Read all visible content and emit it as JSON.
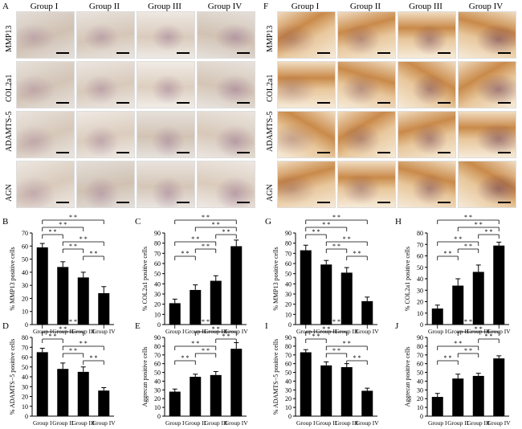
{
  "figure": {
    "left_panel": {
      "letter": "A",
      "columns": [
        "Group I",
        "Group II",
        "Group III",
        "Group IV"
      ],
      "rows": [
        "MMP13",
        "COL2a1",
        "ADAMTS-5",
        "AGN"
      ],
      "theme": "pale"
    },
    "right_panel": {
      "letter": "F",
      "columns": [
        "Group I",
        "Group II",
        "Group III",
        "Group IV"
      ],
      "rows": [
        "MMP13",
        "COL2a1",
        "ADAMTS-5",
        "AGN"
      ],
      "theme": "dark"
    }
  },
  "colors": {
    "bar": "#000000",
    "axis": "#000000"
  },
  "chart_data": [
    {
      "letter": "B",
      "type": "bar",
      "ylabel": "% MMP13 positive cells",
      "categories": [
        "Group I",
        "Group II",
        "Group III",
        "Group IV"
      ],
      "values": [
        59,
        44,
        36,
        24
      ],
      "errors": [
        3,
        4,
        4,
        5
      ],
      "ylim": [
        0,
        70
      ],
      "yticks": [
        0,
        10,
        20,
        30,
        40,
        50,
        60,
        70
      ],
      "significance": [
        [
          "1",
          "2"
        ],
        [
          "1",
          "3"
        ],
        [
          "1",
          "4"
        ],
        [
          "2",
          "3"
        ],
        [
          "2",
          "4"
        ],
        [
          "3",
          "4"
        ]
      ],
      "sig_label": "* *",
      "order": "desc"
    },
    {
      "letter": "C",
      "type": "bar",
      "ylabel": "% COL2a1 positive cells",
      "categories": [
        "Group I",
        "Group II",
        "Group III",
        "Group IV"
      ],
      "values": [
        21,
        34,
        43,
        77
      ],
      "errors": [
        4,
        5,
        5,
        6
      ],
      "ylim": [
        0,
        90
      ],
      "yticks": [
        0,
        10,
        20,
        30,
        40,
        50,
        60,
        70,
        80,
        90
      ],
      "sig_label": "* *",
      "order": "asc"
    },
    {
      "letter": "D",
      "type": "bar",
      "ylabel": "% ADAMTS−5 positive cells",
      "categories": [
        "Group I",
        "Group II",
        "Group III",
        "Group IV"
      ],
      "values": [
        65,
        48,
        45,
        26
      ],
      "errors": [
        4,
        6,
        5,
        3
      ],
      "ylim": [
        0,
        80
      ],
      "yticks": [
        0,
        10,
        20,
        30,
        40,
        50,
        60,
        70,
        80
      ],
      "sig_label": "* *",
      "order": "desc"
    },
    {
      "letter": "E",
      "type": "bar",
      "ylabel": "Aggrecan positive cells",
      "categories": [
        "Group I",
        "Group II",
        "Group III",
        "Group IV"
      ],
      "values": [
        28,
        45,
        47,
        77
      ],
      "errors": [
        3,
        3,
        4,
        7
      ],
      "ylim": [
        0,
        90
      ],
      "yticks": [
        0,
        10,
        20,
        30,
        40,
        50,
        60,
        70,
        80,
        90
      ],
      "sig_label": "* *",
      "order": "asc"
    },
    {
      "letter": "G",
      "type": "bar",
      "ylabel": "% MMP13 positive cells",
      "categories": [
        "Group I",
        "Group II",
        "Group III",
        "Group IV"
      ],
      "values": [
        73,
        59,
        51,
        23
      ],
      "errors": [
        5,
        4,
        5,
        4
      ],
      "ylim": [
        0,
        90
      ],
      "yticks": [
        0,
        10,
        20,
        30,
        40,
        50,
        60,
        70,
        80,
        90
      ],
      "sig_label": "* *",
      "order": "desc"
    },
    {
      "letter": "H",
      "type": "bar",
      "ylabel": "% COL2a1 positive cells",
      "categories": [
        "Group I",
        "Group II",
        "Group III",
        "Group IV"
      ],
      "values": [
        14,
        34,
        46,
        69
      ],
      "errors": [
        3,
        6,
        6,
        3
      ],
      "ylim": [
        0,
        80
      ],
      "yticks": [
        0,
        10,
        20,
        30,
        40,
        50,
        60,
        70,
        80
      ],
      "sig_label": "* *",
      "order": "asc"
    },
    {
      "letter": "I",
      "type": "bar",
      "ylabel": "% ADAMTS−5 positive cells",
      "categories": [
        "Group I",
        "Group II",
        "Group III",
        "Group IV"
      ],
      "values": [
        73,
        58,
        56,
        29
      ],
      "errors": [
        3,
        4,
        4,
        3
      ],
      "ylim": [
        0,
        90
      ],
      "yticks": [
        0,
        10,
        20,
        30,
        40,
        50,
        60,
        70,
        80,
        90
      ],
      "sig_label": "* *",
      "order": "desc"
    },
    {
      "letter": "J",
      "type": "bar",
      "ylabel": "Aggrecan positive cells",
      "categories": [
        "Group I",
        "Group II",
        "Group III",
        "Group IV"
      ],
      "values": [
        22,
        43,
        46,
        66
      ],
      "errors": [
        4,
        5,
        3,
        3
      ],
      "ylim": [
        0,
        90
      ],
      "yticks": [
        0,
        10,
        20,
        30,
        40,
        50,
        60,
        70,
        80,
        90
      ],
      "sig_label": "* *",
      "order": "asc"
    }
  ]
}
